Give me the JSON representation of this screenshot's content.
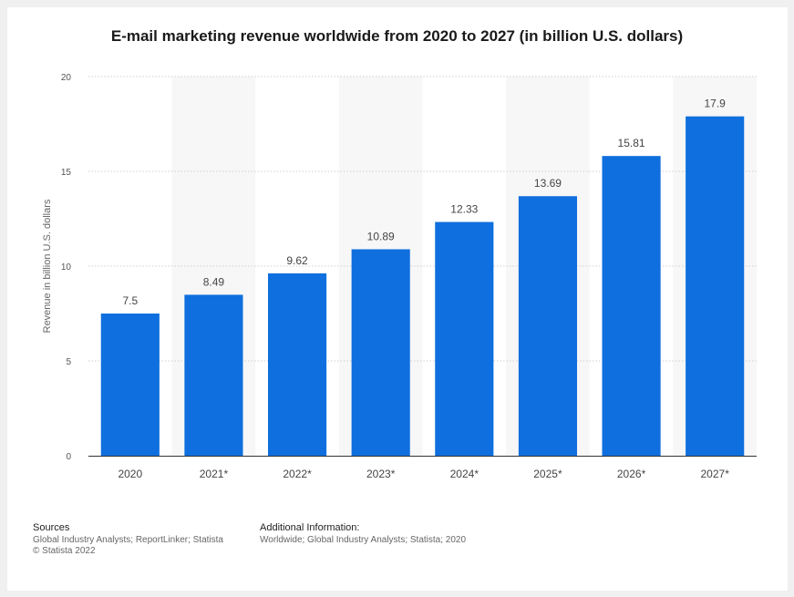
{
  "colors": {
    "bar": "#0f6fde",
    "grid": "#cfcfcf",
    "band": "#f7f7f7",
    "axis": "#333333",
    "label": "#444444",
    "tick": "#555555"
  },
  "chart_data": {
    "type": "bar",
    "title": "E-mail marketing revenue worldwide from 2020 to 2027 (in billion U.S. dollars)",
    "xlabel": "",
    "ylabel": "Revenue in billion U.S. dollars",
    "categories": [
      "2020",
      "2021*",
      "2022*",
      "2023*",
      "2024*",
      "2025*",
      "2026*",
      "2027*"
    ],
    "values": [
      7.5,
      8.49,
      9.62,
      10.89,
      12.33,
      13.69,
      15.81,
      17.9
    ],
    "value_labels": [
      "7.5",
      "8.49",
      "9.62",
      "10.89",
      "12.33",
      "13.69",
      "15.81",
      "17.9"
    ],
    "ylim": [
      0,
      20
    ],
    "yticks": [
      0,
      5,
      10,
      15,
      20
    ],
    "grid": true,
    "legend": false
  },
  "footer": {
    "sources_heading": "Sources",
    "sources_lines": [
      "Global Industry Analysts; ReportLinker; Statista",
      "© Statista 2022"
    ],
    "additional_heading": "Additional Information:",
    "additional_lines": [
      "Worldwide; Global Industry Analysts; Statista; 2020"
    ]
  }
}
